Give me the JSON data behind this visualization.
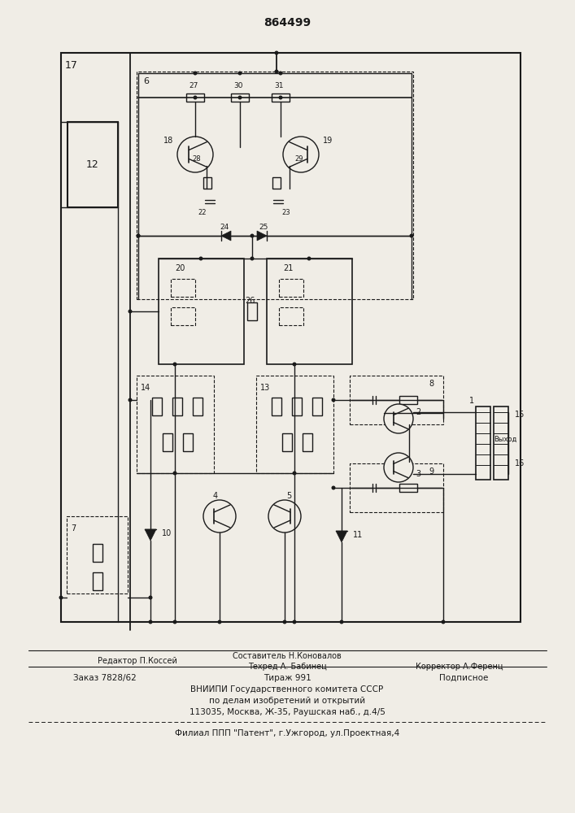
{
  "patent_number": "864499",
  "bg_color": "#f0ede6",
  "line_color": "#1a1a1a",
  "footer": {
    "editor": "Редактор П.Коссей",
    "composer": "Составитель Н.Коновалов",
    "techred": "Техред А. Бабинец",
    "corrector": "Корректор А.Ференц",
    "order": "Заказ 7828/62",
    "circulation": "Тираж 991",
    "subscription": "Подписное",
    "organization": "ВНИИПИ Государственного комитета СССР",
    "org2": "по делам изобретений и открытий",
    "address": "113035, Москва, Ж-35, Раушская наб., д.4/5",
    "branch": "Филиал ППП \"Патент\", г.Ужгород, ул.Проектная,4"
  },
  "labels": {
    "n17": "17",
    "n6": "6",
    "n12": "12",
    "n27": "27",
    "n30": "30",
    "n31": "31",
    "n18": "18",
    "n19": "19",
    "n28": "28",
    "n29": "29",
    "n22": "22",
    "n23": "23",
    "n24": "24",
    "n25": "25",
    "n20": "20",
    "n21": "21",
    "n26": "26",
    "n14": "14",
    "n13": "13",
    "n8": "8",
    "n7": "7",
    "n4": "4",
    "n5": "5",
    "n10": "10",
    "n11": "11",
    "n2": "2",
    "n3": "3",
    "n9": "9",
    "n1": "1",
    "n15": "15",
    "n16": "16",
    "vyhod": "Выход"
  }
}
